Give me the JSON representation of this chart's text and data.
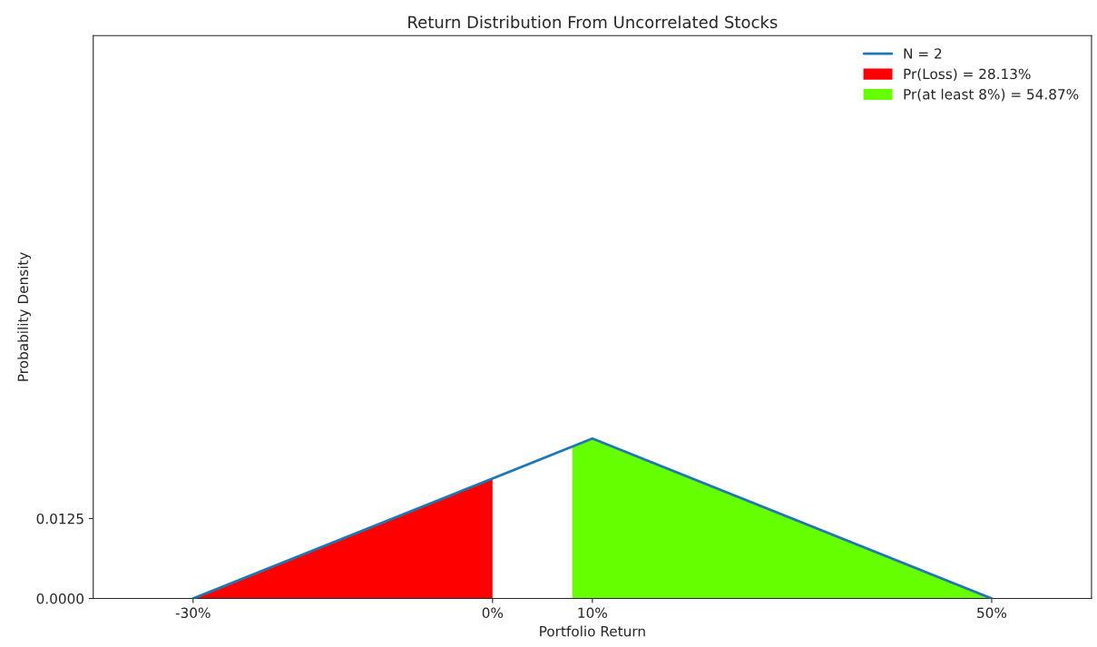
{
  "chart_data": {
    "type": "line",
    "title": "Return Distribution From Uncorrelated Stocks",
    "xlabel": "Portfolio Return",
    "ylabel": "Probability Density",
    "xlim": [
      -40,
      60
    ],
    "xticks": [
      {
        "value": -30,
        "label": "-30%"
      },
      {
        "value": 0,
        "label": "0%"
      },
      {
        "value": 10,
        "label": "10%"
      },
      {
        "value": 50,
        "label": "50%"
      }
    ],
    "ylim": [
      0,
      0.088
    ],
    "yticks": [
      {
        "value": 0,
        "label": "0.0000"
      },
      {
        "value": 0.0125,
        "label": "0.0125"
      }
    ],
    "series": [
      {
        "name": "N = 2",
        "color": "#1f77b4",
        "x": [
          -30,
          10,
          50
        ],
        "values": [
          0,
          0.025,
          0
        ]
      },
      {
        "name": "Pr(Loss) = 28.13%",
        "type": "area",
        "color": "#ff0000",
        "x": [
          -30,
          0
        ],
        "values": [
          0,
          0.0188
        ]
      },
      {
        "name": "Pr(at least 8%) = 54.87%",
        "type": "area",
        "color": "#66ff00",
        "x": [
          8,
          10,
          50
        ],
        "values": [
          0.0238,
          0.025,
          0
        ]
      }
    ],
    "grid": false,
    "legend": "top right"
  }
}
